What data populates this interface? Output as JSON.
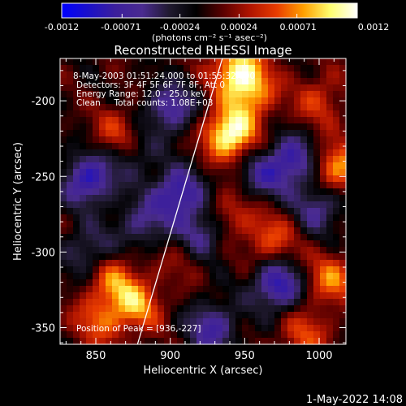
{
  "chart_data": {
    "type": "heatmap",
    "title": "Reconstructed RHESSI Image",
    "xlabel": "Heliocentric X (arcsec)",
    "ylabel": "Heliocentric Y (arcsec)",
    "xlim": [
      826,
      1018
    ],
    "ylim": [
      -361,
      -172
    ],
    "x_ticks": [
      850,
      900,
      950,
      1000
    ],
    "y_ticks": [
      -200,
      -250,
      -300,
      -350
    ],
    "colorbar": {
      "range": [
        -0.0012,
        0.0012
      ],
      "ticks": [
        "-0.0012",
        "-0.00071",
        "-0.00024",
        "0.00024",
        "0.00071",
        "0.0012"
      ],
      "unit_label": "(photons cm⁻² s⁻¹ asec⁻²)",
      "colors": [
        "#0000ff",
        "#1b10c8",
        "#3c1f9c",
        "#4a2b90",
        "#201a30",
        "#000000",
        "#5a0000",
        "#b01400",
        "#e83c00",
        "#ffa000",
        "#ffff70",
        "#ffffff"
      ]
    },
    "annotations": {
      "time": "8-May-2003 01:51:24.000 to 01:55:32.000",
      "detectors": "Detectors: 3F 4F 5F 6F 7F 8F, Att 0",
      "energy": "Energy Range: 12.0 - 25.0 keV",
      "clean": "Clean     Total counts: 1.08E+03",
      "peak": "Position of Peak = [936,-227]"
    },
    "hot_spots": [
      {
        "x": 940,
        "y": -222,
        "value": 0.0012
      },
      {
        "x": 945,
        "y": -180,
        "value": 0.00095
      },
      {
        "x": 955,
        "y": -195,
        "value": 0.00065
      },
      {
        "x": 878,
        "y": -335,
        "value": 0.0007
      },
      {
        "x": 862,
        "y": -318,
        "value": 0.0006
      },
      {
        "x": 852,
        "y": -345,
        "value": 0.00055
      },
      {
        "x": 1012,
        "y": -245,
        "value": 0.0008
      },
      {
        "x": 1008,
        "y": -318,
        "value": 0.00065
      },
      {
        "x": 968,
        "y": -292,
        "value": 0.00055
      },
      {
        "x": 940,
        "y": -275,
        "value": 0.00045
      },
      {
        "x": 865,
        "y": -222,
        "value": 0.0005
      },
      {
        "x": 990,
        "y": -355,
        "value": 0.0005
      },
      {
        "x": 1000,
        "y": -200,
        "value": 0.00045
      },
      {
        "x": 912,
        "y": -300,
        "value": 0.0004
      }
    ],
    "cold_spots": [
      {
        "x": 845,
        "y": -252,
        "value": -0.0009
      },
      {
        "x": 905,
        "y": -262,
        "value": -0.0009
      },
      {
        "x": 920,
        "y": -290,
        "value": -0.0008
      },
      {
        "x": 972,
        "y": -322,
        "value": -0.0009
      },
      {
        "x": 982,
        "y": -240,
        "value": -0.0008
      },
      {
        "x": 1000,
        "y": -270,
        "value": -0.0006
      },
      {
        "x": 845,
        "y": -300,
        "value": -0.0005
      },
      {
        "x": 880,
        "y": -282,
        "value": -0.0005
      },
      {
        "x": 900,
        "y": -205,
        "value": -0.0007
      },
      {
        "x": 928,
        "y": -350,
        "value": -0.0007
      },
      {
        "x": 960,
        "y": -250,
        "value": -0.0005
      },
      {
        "x": 875,
        "y": -235,
        "value": -0.0004
      }
    ],
    "limb_line": [
      [
        878,
        -361
      ],
      [
        935,
        -172
      ]
    ]
  },
  "footer": {
    "date": "1-May-2022 14:08"
  },
  "colors": {
    "background": "#000000",
    "text": "#ffffff"
  }
}
